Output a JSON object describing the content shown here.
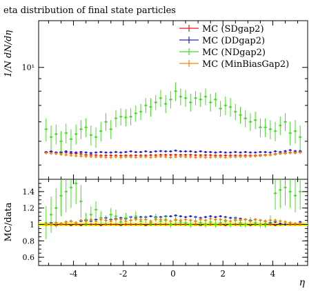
{
  "chart_data": {
    "type": "scatter",
    "title": "eta distribution of final state particles",
    "xlabel": "η",
    "xlim": [
      -5.4,
      5.4
    ],
    "x_ticks": [
      {
        "value": -4,
        "label": "-4"
      },
      {
        "value": -2,
        "label": "-2"
      },
      {
        "value": 0,
        "label": "0"
      },
      {
        "value": 2,
        "label": "2"
      },
      {
        "value": 4,
        "label": "4"
      }
    ],
    "legend_position": "top-right",
    "legend": [
      {
        "label": "MC (SDgap2)",
        "color": "#e01c1c"
      },
      {
        "label": "MC (DDgap2)",
        "color": "#2020e0"
      },
      {
        "label": "MC (NDgap2)",
        "color": "#44dd22"
      },
      {
        "label": "MC (MinBiasGap2)",
        "color": "#ee8800"
      }
    ],
    "main": {
      "ylabel": "1/N dN/dη",
      "yscale": "log",
      "ylim": [
        3.5,
        15.5
      ],
      "y_ticks": [
        {
          "value": 10,
          "label": "10¹"
        }
      ],
      "x": [
        -5.1,
        -4.9,
        -4.7,
        -4.5,
        -4.3,
        -4.1,
        -3.9,
        -3.7,
        -3.5,
        -3.3,
        -3.1,
        -2.9,
        -2.7,
        -2.5,
        -2.3,
        -2.1,
        -1.9,
        -1.7,
        -1.5,
        -1.3,
        -1.1,
        -0.9,
        -0.7,
        -0.5,
        -0.3,
        -0.1,
        0.1,
        0.3,
        0.5,
        0.7,
        0.9,
        1.1,
        1.3,
        1.5,
        1.7,
        1.9,
        2.1,
        2.3,
        2.5,
        2.7,
        2.9,
        3.1,
        3.3,
        3.5,
        3.7,
        3.9,
        4.1,
        4.3,
        4.5,
        4.7,
        4.9,
        5.1
      ],
      "series": [
        {
          "name": "MC (SDgap2)",
          "color": "#e01c1c",
          "values": [
            4.5,
            4.52,
            4.5,
            4.48,
            4.5,
            4.46,
            4.46,
            4.44,
            4.4,
            4.4,
            4.39,
            4.38,
            4.38,
            4.38,
            4.38,
            4.37,
            4.38,
            4.38,
            4.38,
            4.38,
            4.38,
            4.39,
            4.39,
            4.4,
            4.4,
            4.4,
            4.4,
            4.4,
            4.4,
            4.4,
            4.39,
            4.39,
            4.39,
            4.39,
            4.38,
            4.38,
            4.38,
            4.38,
            4.38,
            4.38,
            4.38,
            4.38,
            4.38,
            4.39,
            4.4,
            4.4,
            4.44,
            4.46,
            4.48,
            4.5,
            4.5,
            4.52
          ],
          "err": [
            0.04,
            0.04,
            0.04,
            0.04,
            0.04,
            0.04,
            0.04,
            0.04,
            0.04,
            0.04,
            0.04,
            0.04,
            0.04,
            0.04,
            0.04,
            0.04,
            0.04,
            0.04,
            0.04,
            0.04,
            0.04,
            0.04,
            0.04,
            0.04,
            0.04,
            0.04,
            0.04,
            0.04,
            0.04,
            0.04,
            0.04,
            0.04,
            0.04,
            0.04,
            0.04,
            0.04,
            0.04,
            0.04,
            0.04,
            0.04,
            0.04,
            0.04,
            0.04,
            0.04,
            0.04,
            0.04,
            0.04,
            0.04,
            0.04,
            0.04,
            0.04,
            0.04
          ]
        },
        {
          "name": "MC (DDgap2)",
          "color": "#2020e0",
          "values": [
            4.52,
            4.55,
            4.5,
            4.52,
            4.55,
            4.52,
            4.5,
            4.52,
            4.5,
            4.48,
            4.5,
            4.52,
            4.5,
            4.5,
            4.52,
            4.5,
            4.52,
            4.55,
            4.52,
            4.52,
            4.55,
            4.52,
            4.55,
            4.56,
            4.55,
            4.55,
            4.58,
            4.55,
            4.55,
            4.55,
            4.52,
            4.55,
            4.52,
            4.52,
            4.5,
            4.52,
            4.5,
            4.5,
            4.52,
            4.5,
            4.52,
            4.5,
            4.5,
            4.52,
            4.52,
            4.5,
            4.55,
            4.52,
            4.56,
            4.6,
            4.56,
            4.56
          ],
          "err": [
            0.04,
            0.04,
            0.04,
            0.04,
            0.04,
            0.04,
            0.04,
            0.04,
            0.04,
            0.04,
            0.04,
            0.04,
            0.04,
            0.04,
            0.04,
            0.04,
            0.04,
            0.04,
            0.04,
            0.04,
            0.04,
            0.04,
            0.04,
            0.04,
            0.04,
            0.04,
            0.04,
            0.04,
            0.04,
            0.04,
            0.04,
            0.04,
            0.04,
            0.04,
            0.04,
            0.04,
            0.04,
            0.04,
            0.04,
            0.04,
            0.04,
            0.04,
            0.04,
            0.04,
            0.04,
            0.04,
            0.04,
            0.04,
            0.04,
            0.04,
            0.04,
            0.04
          ]
        },
        {
          "name": "MC (NDgap2)",
          "color": "#44dd22",
          "values": [
            5.6,
            5.2,
            5.35,
            5.0,
            5.4,
            5.1,
            5.35,
            5.6,
            5.7,
            5.3,
            5.2,
            5.5,
            6.0,
            5.6,
            6.2,
            6.3,
            6.25,
            6.3,
            6.5,
            6.6,
            7.0,
            6.9,
            7.2,
            7.5,
            7.1,
            7.4,
            8.0,
            7.6,
            7.5,
            7.2,
            7.5,
            7.4,
            7.6,
            7.2,
            7.4,
            6.8,
            7.0,
            6.9,
            6.6,
            6.4,
            6.2,
            6.0,
            6.1,
            5.7,
            5.7,
            5.6,
            5.5,
            5.8,
            6.0,
            5.4,
            5.5,
            5.2
          ],
          "err": [
            0.6,
            0.6,
            0.5,
            0.5,
            0.5,
            0.5,
            0.5,
            0.5,
            0.5,
            0.5,
            0.5,
            0.5,
            0.5,
            0.5,
            0.5,
            0.5,
            0.5,
            0.5,
            0.5,
            0.5,
            0.5,
            0.6,
            0.5,
            0.6,
            0.6,
            0.6,
            0.7,
            0.6,
            0.6,
            0.6,
            0.5,
            0.5,
            0.6,
            0.6,
            0.5,
            0.5,
            0.6,
            0.6,
            0.5,
            0.5,
            0.5,
            0.5,
            0.5,
            0.5,
            0.5,
            0.5,
            0.5,
            0.5,
            0.5,
            0.6,
            0.6,
            0.6
          ]
        },
        {
          "name": "MC (MinBiasGap2)",
          "color": "#ee8800",
          "values": [
            4.48,
            4.46,
            4.45,
            4.42,
            4.4,
            4.38,
            4.36,
            4.35,
            4.34,
            4.33,
            4.32,
            4.32,
            4.3,
            4.3,
            4.32,
            4.3,
            4.32,
            4.32,
            4.3,
            4.32,
            4.32,
            4.3,
            4.32,
            4.33,
            4.32,
            4.3,
            4.32,
            4.33,
            4.32,
            4.32,
            4.3,
            4.32,
            4.3,
            4.3,
            4.32,
            4.32,
            4.3,
            4.32,
            4.32,
            4.33,
            4.33,
            4.34,
            4.35,
            4.36,
            4.38,
            4.4,
            4.42,
            4.45,
            4.46,
            4.48,
            4.48,
            4.5
          ],
          "err": [
            0.06,
            0.06,
            0.06,
            0.06,
            0.06,
            0.06,
            0.06,
            0.06,
            0.06,
            0.06,
            0.06,
            0.06,
            0.06,
            0.06,
            0.06,
            0.06,
            0.06,
            0.06,
            0.06,
            0.06,
            0.06,
            0.06,
            0.06,
            0.06,
            0.06,
            0.06,
            0.06,
            0.06,
            0.06,
            0.06,
            0.06,
            0.06,
            0.06,
            0.06,
            0.06,
            0.06,
            0.06,
            0.06,
            0.06,
            0.06,
            0.06,
            0.06,
            0.06,
            0.06,
            0.06,
            0.06,
            0.06,
            0.06,
            0.06,
            0.06,
            0.06,
            0.06
          ]
        }
      ]
    },
    "ratio": {
      "ylabel": "MC/data",
      "ylim": [
        0.5,
        1.55
      ],
      "y_ticks": [
        {
          "value": 0.6,
          "label": "0.6"
        },
        {
          "value": 0.8,
          "label": "0.8"
        },
        {
          "value": 1,
          "label": "1"
        },
        {
          "value": 1.2,
          "label": "1.2"
        },
        {
          "value": 1.4,
          "label": "1.4"
        }
      ],
      "reference": {
        "value": 1,
        "line_color": "#000000",
        "band_color": "#eeee00",
        "band_halfwidth": 0.02
      },
      "series": [
        {
          "name": "MC (SDgap2)",
          "color": "#e01c1c",
          "values": [
            1.0,
            1.0,
            0.99,
            1.0,
            1.0,
            0.99,
            1.0,
            0.99,
            1.0,
            1.0,
            1.0,
            0.99,
            1.0,
            1.0,
            1.0,
            0.99,
            1.0,
            1.0,
            1.0,
            1.0,
            0.99,
            1.0,
            1.0,
            1.0,
            1.0,
            1.0,
            1.0,
            1.0,
            1.0,
            1.0,
            1.0,
            0.99,
            1.0,
            1.0,
            1.0,
            1.0,
            0.99,
            1.0,
            1.0,
            1.0,
            1.0,
            0.99,
            1.0,
            1.0,
            1.0,
            1.0,
            0.99,
            1.0,
            1.0,
            1.0,
            1.0,
            1.0
          ],
          "err": [
            0.01,
            0.01,
            0.01,
            0.01,
            0.01,
            0.01,
            0.01,
            0.01,
            0.01,
            0.01,
            0.01,
            0.01,
            0.01,
            0.01,
            0.01,
            0.01,
            0.01,
            0.01,
            0.01,
            0.01,
            0.01,
            0.01,
            0.01,
            0.01,
            0.01,
            0.01,
            0.01,
            0.01,
            0.01,
            0.01,
            0.01,
            0.01,
            0.01,
            0.01,
            0.01,
            0.01,
            0.01,
            0.01,
            0.01,
            0.01,
            0.01,
            0.01,
            0.01,
            0.01,
            0.01,
            0.01,
            0.01,
            0.01,
            0.01,
            0.01,
            0.01,
            0.01
          ]
        },
        {
          "name": "MC (DDgap2)",
          "color": "#2020e0",
          "values": [
            1.0,
            1.02,
            1.02,
            1.01,
            1.03,
            1.04,
            1.02,
            1.04,
            1.05,
            1.04,
            1.06,
            1.08,
            1.08,
            1.06,
            1.07,
            1.08,
            1.07,
            1.09,
            1.08,
            1.09,
            1.09,
            1.1,
            1.09,
            1.09,
            1.1,
            1.1,
            1.11,
            1.1,
            1.09,
            1.1,
            1.09,
            1.08,
            1.09,
            1.1,
            1.09,
            1.1,
            1.09,
            1.08,
            1.08,
            1.07,
            1.06,
            1.05,
            1.06,
            1.05,
            1.04,
            1.02,
            1.03,
            1.01,
            1.0,
            1.02,
            1.01,
            1.03
          ],
          "err": [
            0.01,
            0.01,
            0.01,
            0.01,
            0.01,
            0.01,
            0.01,
            0.01,
            0.01,
            0.01,
            0.01,
            0.01,
            0.01,
            0.01,
            0.01,
            0.01,
            0.01,
            0.01,
            0.01,
            0.01,
            0.01,
            0.01,
            0.01,
            0.01,
            0.01,
            0.01,
            0.01,
            0.01,
            0.01,
            0.01,
            0.01,
            0.01,
            0.01,
            0.01,
            0.01,
            0.01,
            0.01,
            0.01,
            0.01,
            0.01,
            0.01,
            0.01,
            0.01,
            0.01,
            0.01,
            0.01,
            0.01,
            0.01,
            0.01,
            0.01,
            0.01,
            0.01
          ]
        },
        {
          "name": "MC (NDgap2)",
          "color": "#44dd22",
          "values": [
            1.02,
            1.12,
            1.2,
            1.35,
            1.4,
            1.45,
            1.5,
            1.28,
            1.06,
            1.12,
            1.18,
            1.08,
            1.05,
            1.12,
            1.1,
            1.03,
            1.08,
            1.05,
            1.1,
            1.04,
            1.06,
            1.02,
            1.08,
            1.04,
            1.06,
            1.0,
            1.05,
            1.03,
            1.02,
            1.0,
            1.04,
            1.02,
            1.0,
            1.03,
            1.0,
            1.02,
            1.04,
            1.0,
            1.05,
            1.02,
            1.0,
            1.04,
            1.02,
            1.0,
            1.01,
            1.05,
            1.38,
            1.42,
            1.45,
            1.4,
            1.35,
            1.4
          ],
          "err": [
            0.2,
            0.22,
            0.24,
            0.25,
            0.25,
            0.25,
            0.25,
            0.2,
            0.08,
            0.1,
            0.1,
            0.08,
            0.06,
            0.08,
            0.08,
            0.04,
            0.06,
            0.05,
            0.06,
            0.05,
            0.05,
            0.04,
            0.05,
            0.05,
            0.05,
            0.04,
            0.05,
            0.04,
            0.04,
            0.04,
            0.05,
            0.04,
            0.04,
            0.04,
            0.04,
            0.04,
            0.05,
            0.04,
            0.05,
            0.05,
            0.04,
            0.05,
            0.04,
            0.04,
            0.05,
            0.06,
            0.2,
            0.22,
            0.22,
            0.2,
            0.2,
            0.22
          ]
        },
        {
          "name": "MC (MinBiasGap2)",
          "color": "#ee8800",
          "values": [
            1.0,
            1.0,
            1.02,
            1.01,
            1.03,
            1.04,
            1.02,
            1.05,
            1.04,
            1.06,
            1.04,
            1.06,
            1.05,
            1.04,
            1.06,
            1.06,
            1.04,
            1.05,
            1.06,
            1.06,
            1.06,
            1.04,
            1.06,
            1.06,
            1.05,
            1.04,
            1.06,
            1.05,
            1.06,
            1.05,
            1.04,
            1.06,
            1.05,
            1.07,
            1.06,
            1.06,
            1.05,
            1.04,
            1.06,
            1.05,
            1.06,
            1.04,
            1.06,
            1.05,
            1.04,
            1.05,
            1.05,
            1.04,
            1.03,
            1.02,
            1.01,
            1.01
          ],
          "err": [
            0.02,
            0.02,
            0.02,
            0.02,
            0.02,
            0.02,
            0.02,
            0.02,
            0.02,
            0.02,
            0.02,
            0.02,
            0.02,
            0.02,
            0.02,
            0.02,
            0.02,
            0.02,
            0.02,
            0.02,
            0.02,
            0.02,
            0.02,
            0.02,
            0.02,
            0.02,
            0.02,
            0.02,
            0.02,
            0.02,
            0.02,
            0.02,
            0.02,
            0.02,
            0.02,
            0.02,
            0.02,
            0.02,
            0.02,
            0.02,
            0.02,
            0.02,
            0.02,
            0.02,
            0.02,
            0.02,
            0.02,
            0.02,
            0.02,
            0.02,
            0.02,
            0.02
          ]
        }
      ]
    }
  }
}
